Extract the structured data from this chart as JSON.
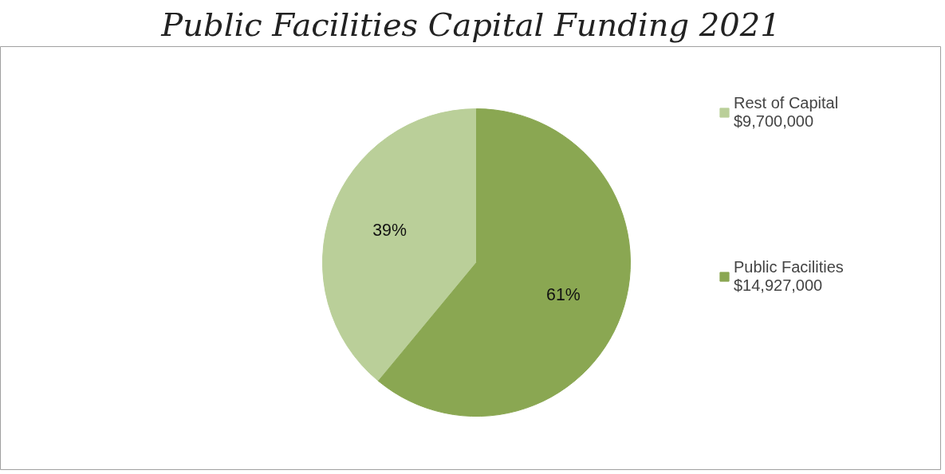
{
  "chart_data": {
    "type": "pie",
    "title": "Public Facilities Capital Funding 2021",
    "categories": [
      "Rest of Capital\n$9,700,000",
      "Public Facilities\n$14,927,000"
    ],
    "values": [
      39,
      61
    ],
    "colors": [
      "#bacf99",
      "#8aa752"
    ],
    "value_labels": [
      "39%",
      "61%"
    ],
    "legend": "right"
  }
}
